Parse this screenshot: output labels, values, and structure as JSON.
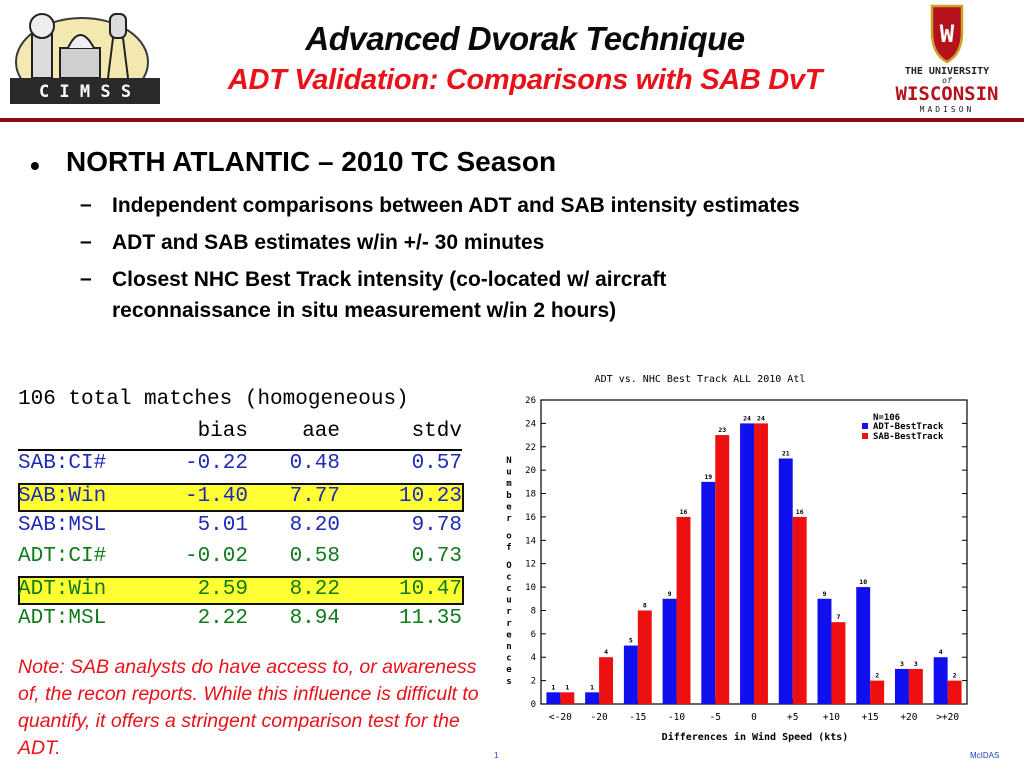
{
  "header": {
    "title": "Advanced Dvorak Technique",
    "subtitle": "ADT Validation: Comparisons with SAB DvT",
    "left_logo_text": "C I M S S",
    "right_logo_lines": [
      "THE UNIVERSITY",
      "of",
      "WISCONSIN",
      "MADISON"
    ],
    "shield_letter": "W"
  },
  "bullets": {
    "main": "NORTH ATLANTIC – 2010 TC Season",
    "dash": "–",
    "subs": [
      "Independent comparisons between ADT and SAB intensity estimates",
      "ADT and SAB estimates w/in +/- 30 minutes",
      "Closest NHC Best Track intensity (co-located w/ aircraft",
      "reconnaissance in situ measurement w/in 2 hours)"
    ]
  },
  "stats": {
    "heading": "106 total matches (homogeneous)",
    "columns": [
      "bias",
      "aae",
      "stdv"
    ],
    "rows": [
      {
        "label": "SAB:CI#",
        "bias": "-0.22",
        "aae": "0.48",
        "stdv": "0.57",
        "color": "#1d2bb5",
        "highlight": false
      },
      {
        "label": "SAB:Win",
        "bias": "-1.40",
        "aae": "7.77",
        "stdv": "10.23",
        "color": "#1d2bb5",
        "highlight": true
      },
      {
        "label": "SAB:MSL",
        "bias": "5.01",
        "aae": "8.20",
        "stdv": "9.78",
        "color": "#1d2bb5",
        "highlight": false
      },
      {
        "label": "ADT:CI#",
        "bias": "-0.02",
        "aae": "0.58",
        "stdv": "0.73",
        "color": "#0f7a18",
        "highlight": false
      },
      {
        "label": "ADT:Win",
        "bias": "2.59",
        "aae": "8.22",
        "stdv": "10.47",
        "color": "#0f7a18",
        "highlight": true
      },
      {
        "label": "ADT:MSL",
        "bias": "2.22",
        "aae": "8.94",
        "stdv": "11.35",
        "color": "#0f7a18",
        "highlight": false
      }
    ]
  },
  "note": "Note: SAB analysts do have access to, or awareness of, the recon reports. While this influence is difficult to quantify, it offers a stringent comparison test for the ADT.",
  "footer": {
    "page": "1",
    "brand": "McIDAS"
  },
  "chart_data": {
    "type": "bar",
    "title": "ADT vs. NHC Best Track ALL 2010 Atl",
    "xlabel": "Differences in Wind Speed (kts)",
    "ylabel": "Number of Occurrences",
    "categories": [
      "<-20",
      "-20",
      "-15",
      "-10",
      "-5",
      "0",
      "+5",
      "+10",
      "+15",
      "+20",
      ">+20"
    ],
    "yticks": [
      "0",
      "2",
      "4",
      "6",
      "8",
      "10",
      "12",
      "14",
      "16",
      "18",
      "20",
      "22",
      "24",
      "26"
    ],
    "ylim": [
      0,
      26
    ],
    "legend_n": "N=106",
    "legend_position": "top-right",
    "series": [
      {
        "name": "ADT-BestTrack",
        "color": "#1010ee",
        "values": [
          1,
          1,
          5,
          9,
          19,
          24,
          21,
          9,
          10,
          3,
          4
        ]
      },
      {
        "name": "SAB-BestTrack",
        "color": "#ee1010",
        "values": [
          1,
          4,
          8,
          16,
          23,
          24,
          16,
          7,
          2,
          3,
          2
        ]
      }
    ]
  }
}
